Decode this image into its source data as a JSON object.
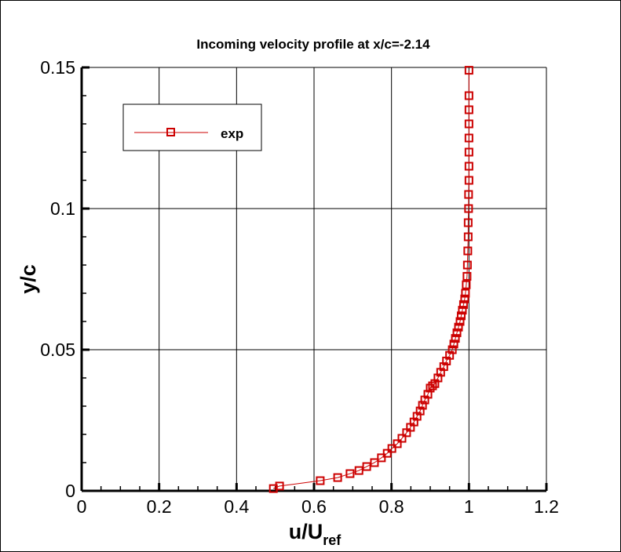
{
  "chart_data": {
    "type": "line",
    "title": "Incoming velocity profile at x/c=-2.14",
    "xlabel": "u/U",
    "xlabel_subscript": "ref",
    "ylabel": "y/c",
    "xlim": [
      0,
      1.2
    ],
    "ylim": [
      0,
      0.15
    ],
    "xticks": [
      "0",
      "0.2",
      "0.4",
      "0.6",
      "0.8",
      "1",
      "1.2"
    ],
    "yticks": [
      "0",
      "0.05",
      "0.1",
      "0.15"
    ],
    "grid": true,
    "legend_placement": "top-left",
    "series": [
      {
        "name": "exp",
        "color": "#cc0000",
        "marker": "square",
        "x": [
          0.495,
          0.511,
          0.616,
          0.661,
          0.693,
          0.716,
          0.736,
          0.756,
          0.774,
          0.789,
          0.801,
          0.815,
          0.827,
          0.839,
          0.849,
          0.858,
          0.866,
          0.874,
          0.88,
          0.886,
          0.894,
          0.9,
          0.906,
          0.912,
          0.92,
          0.927,
          0.935,
          0.942,
          0.95,
          0.957,
          0.961,
          0.965,
          0.969,
          0.973,
          0.977,
          0.98,
          0.983,
          0.986,
          0.989,
          0.991,
          0.993,
          0.995,
          0.996,
          0.997,
          0.998,
          0.998,
          0.999,
          0.999,
          1.0,
          1.0,
          1.0,
          1.0,
          1.0,
          1.0,
          1.0,
          1.0
        ],
        "y": [
          0.0008,
          0.0017,
          0.0036,
          0.0047,
          0.0061,
          0.0072,
          0.0086,
          0.01,
          0.0117,
          0.0133,
          0.015,
          0.0167,
          0.0186,
          0.0206,
          0.0225,
          0.0244,
          0.0264,
          0.0283,
          0.0303,
          0.0322,
          0.0342,
          0.0364,
          0.0372,
          0.038,
          0.04,
          0.042,
          0.044,
          0.046,
          0.048,
          0.05,
          0.052,
          0.054,
          0.056,
          0.058,
          0.06,
          0.062,
          0.064,
          0.066,
          0.068,
          0.07,
          0.073,
          0.076,
          0.08,
          0.085,
          0.09,
          0.095,
          0.1,
          0.105,
          0.11,
          0.115,
          0.12,
          0.125,
          0.13,
          0.135,
          0.14,
          0.149
        ]
      }
    ]
  }
}
